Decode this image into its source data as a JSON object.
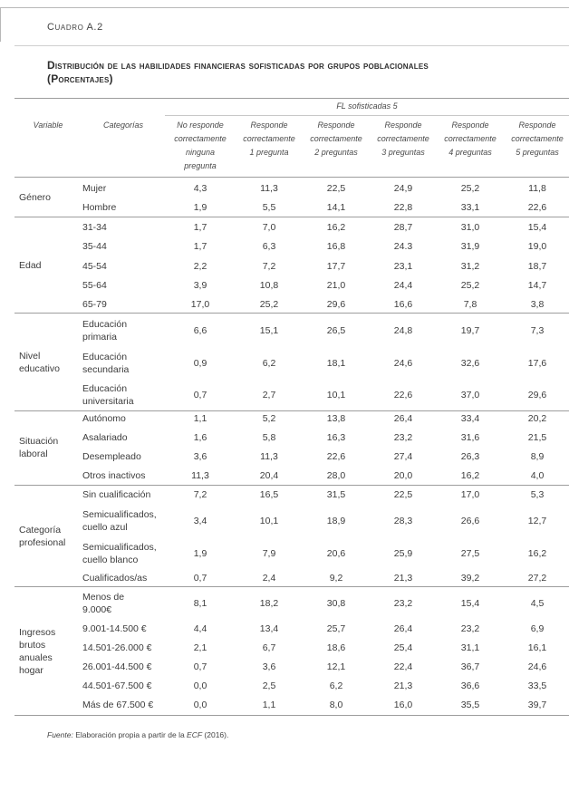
{
  "label": "Cuadro A.2",
  "title_line1": "Distribución de las habilidades financieras sofisticadas por grupos poblacionales",
  "title_line2": "(Porcentajes)",
  "supheader": "FL sofisticadas 5",
  "col_variable": "Variable",
  "col_categorias": "Categorías",
  "columns": [
    "No responde\ncorrectamente\nninguna\npregunta",
    "Responde\ncorrectamente\n1 pregunta",
    "Responde\ncorrectamente\n2 preguntas",
    "Responde\ncorrectamente\n3 preguntas",
    "Responde\ncorrectamente\n4 preguntas",
    "Responde\ncorrectamente\n5 preguntas"
  ],
  "groups": [
    {
      "name": "Género",
      "rows": [
        {
          "cat": "Mujer",
          "v": [
            "4,3",
            "11,3",
            "22,5",
            "24,9",
            "25,2",
            "11,8"
          ]
        },
        {
          "cat": "Hombre",
          "v": [
            "1,9",
            "5,5",
            "14,1",
            "22,8",
            "33,1",
            "22,6"
          ]
        }
      ]
    },
    {
      "name": "Edad",
      "rows": [
        {
          "cat": "31-34",
          "v": [
            "1,7",
            "7,0",
            "16,2",
            "28,7",
            "31,0",
            "15,4"
          ]
        },
        {
          "cat": "35-44",
          "v": [
            "1,7",
            "6,3",
            "16,8",
            "24.3",
            "31,9",
            "19,0"
          ]
        },
        {
          "cat": "45-54",
          "v": [
            "2,2",
            "7,2",
            "17,7",
            "23,1",
            "31,2",
            "18,7"
          ]
        },
        {
          "cat": "55-64",
          "v": [
            "3,9",
            "10,8",
            "21,0",
            "24,4",
            "25,2",
            "14,7"
          ]
        },
        {
          "cat": "65-79",
          "v": [
            "17,0",
            "25,2",
            "29,6",
            "16,6",
            "7,8",
            "3,8"
          ]
        }
      ]
    },
    {
      "name": "Nivel\neducativo",
      "rows": [
        {
          "cat": "Educación\nprimaria",
          "v": [
            "6,6",
            "15,1",
            "26,5",
            "24,8",
            "19,7",
            "7,3"
          ]
        },
        {
          "cat": "Educación\nsecundaria",
          "v": [
            "0,9",
            "6,2",
            "18,1",
            "24,6",
            "32,6",
            "17,6"
          ]
        },
        {
          "cat": "Educación\nuniversitaria",
          "v": [
            "0,7",
            "2,7",
            "10,1",
            "22,6",
            "37,0",
            "29,6"
          ]
        }
      ]
    },
    {
      "name": "Situación\nlaboral",
      "rows": [
        {
          "cat": "Autónomo",
          "v": [
            "1,1",
            "5,2",
            "13,8",
            "26,4",
            "33,4",
            "20,2"
          ]
        },
        {
          "cat": "Asalariado",
          "v": [
            "1,6",
            "5,8",
            "16,3",
            "23,2",
            "31,6",
            "21,5"
          ]
        },
        {
          "cat": "Desempleado",
          "v": [
            "3,6",
            "11,3",
            "22,6",
            "27,4",
            "26,3",
            "8,9"
          ]
        },
        {
          "cat": "Otros inactivos",
          "v": [
            "11,3",
            "20,4",
            "28,0",
            "20,0",
            "16,2",
            "4,0"
          ]
        }
      ]
    },
    {
      "name": "Categoría\nprofesional",
      "rows": [
        {
          "cat": "Sin cualificación",
          "v": [
            "7,2",
            "16,5",
            "31,5",
            "22,5",
            "17,0",
            "5,3"
          ]
        },
        {
          "cat": "Semicualificados,\ncuello azul",
          "v": [
            "3,4",
            "10,1",
            "18,9",
            "28,3",
            "26,6",
            "12,7"
          ]
        },
        {
          "cat": "Semicualificados,\ncuello blanco",
          "v": [
            "1,9",
            "7,9",
            "20,6",
            "25,9",
            "27,5",
            "16,2"
          ]
        },
        {
          "cat": "Cualificados/as",
          "v": [
            "0,7",
            "2,4",
            "9,2",
            "21,3",
            "39,2",
            "27,2"
          ]
        }
      ]
    },
    {
      "name": "Ingresos\nbrutos\nanuales\nhogar",
      "rows": [
        {
          "cat": "Menos de\n9.000€",
          "v": [
            "8,1",
            "18,2",
            "30,8",
            "23,2",
            "15,4",
            "4,5"
          ]
        },
        {
          "cat": "9.001-14.500 €",
          "v": [
            "4,4",
            "13,4",
            "25,7",
            "26,4",
            "23,2",
            "6,9"
          ]
        },
        {
          "cat": "14.501-26.000 €",
          "v": [
            "2,1",
            "6,7",
            "18,6",
            "25,4",
            "31,1",
            "16,1"
          ]
        },
        {
          "cat": "26.001-44.500 €",
          "v": [
            "0,7",
            "3,6",
            "12,1",
            "22,4",
            "36,7",
            "24,6"
          ]
        },
        {
          "cat": "44.501-67.500 €",
          "v": [
            "0,0",
            "2,5",
            "6,2",
            "21,3",
            "36,6",
            "33,5"
          ]
        },
        {
          "cat": "Más de 67.500 €",
          "v": [
            "0,0",
            "1,1",
            "8,0",
            "16,0",
            "35,5",
            "39,7"
          ]
        }
      ]
    }
  ],
  "fuente_label": "Fuente:",
  "fuente_text1": " Elaboración propia a partir de la ",
  "fuente_ecf": "ECF",
  "fuente_text2": " (2016)."
}
